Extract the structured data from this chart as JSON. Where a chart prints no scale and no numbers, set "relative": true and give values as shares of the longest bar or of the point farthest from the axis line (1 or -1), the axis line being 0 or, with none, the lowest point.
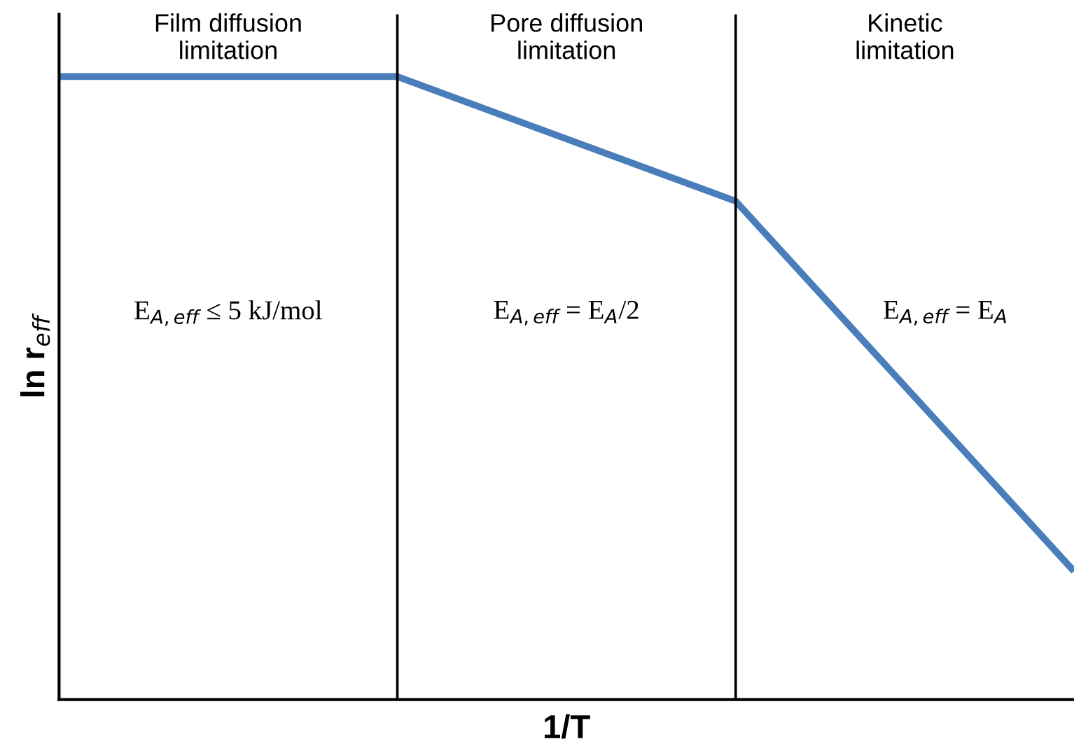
{
  "chart_data": {
    "type": "line",
    "relative": true,
    "categories": [
      null,
      null,
      null,
      null
    ],
    "series": [
      {
        "color": "#4a7ebb",
        "values": [
          1,
          1,
          0.8,
          0.206
        ]
      }
    ],
    "xlabel": "1/T",
    "ylabel": "ln r$_{eff}$",
    "annotations": [
      "Film diffusion\nlimitation",
      "Pore diffusion\nlimitation",
      "Kinetic\nlimitation",
      "E$_{A,eff}$ ≤ 5 kJ/mol",
      "E$_{A,eff}$ = E$_{A}$/2",
      "E$_{A,eff}$ = E$_{A}$"
    ],
    "grid": false,
    "legend": false,
    "marker": "none",
    "line_style": "solid"
  }
}
